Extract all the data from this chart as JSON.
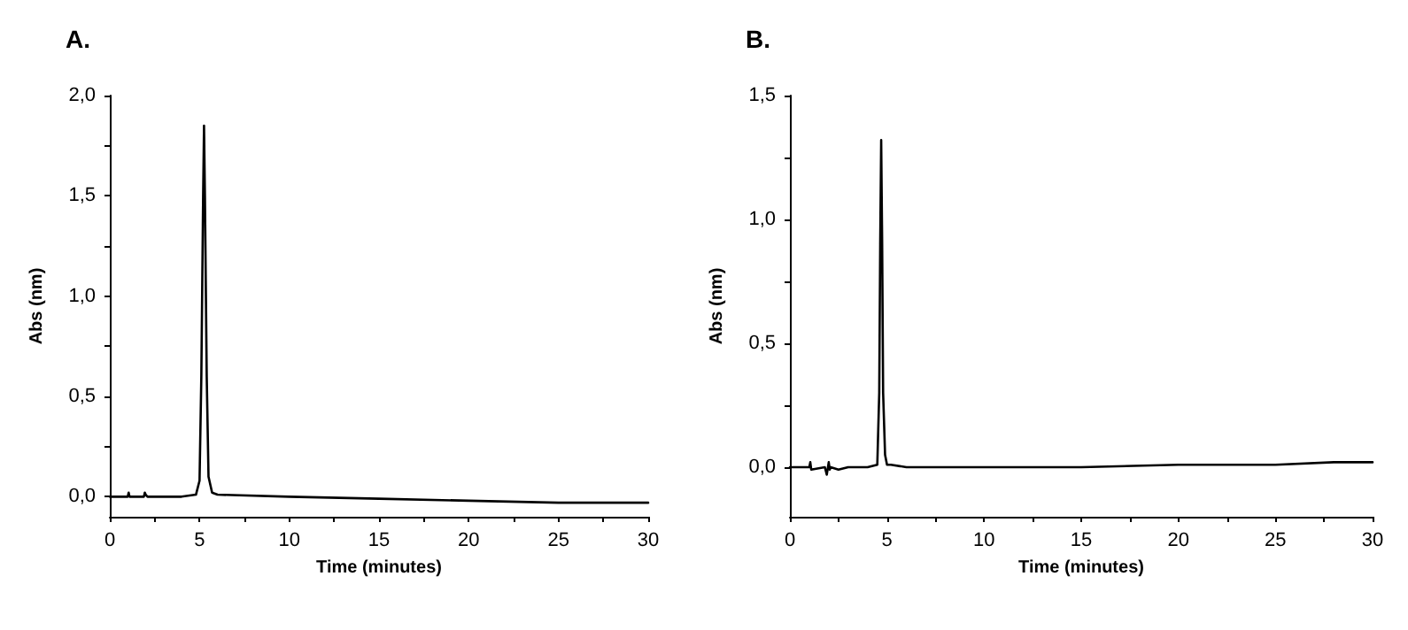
{
  "chart_data": [
    {
      "type": "line",
      "title": "A.",
      "xlabel": "Time (minutes)",
      "ylabel": "Abs (nm)",
      "xlim": [
        0,
        30
      ],
      "ylim": [
        -0.1,
        2.0
      ],
      "grid": false,
      "marker": "none",
      "line_style": "solid",
      "xticks": [
        0,
        {
          "value": 2.5,
          "label": null
        },
        5,
        {
          "value": 7.5,
          "label": null
        },
        10,
        {
          "value": 12.5,
          "label": null
        },
        15,
        {
          "value": 17.5,
          "label": null
        },
        20,
        {
          "value": 22.5,
          "label": null
        },
        25,
        {
          "value": 27.5,
          "label": null
        },
        30
      ],
      "yticks": [
        {
          "value": 0,
          "label": "0,0"
        },
        {
          "value": 0.25,
          "label": null
        },
        {
          "value": 0.5,
          "label": "0,5"
        },
        {
          "value": 0.75,
          "label": null
        },
        {
          "value": 1,
          "label": "1,0"
        },
        {
          "value": 1.25,
          "label": null
        },
        {
          "value": 1.5,
          "label": "1,5"
        },
        {
          "value": 1.75,
          "label": null
        },
        {
          "value": 2,
          "label": "2,0"
        }
      ],
      "series": [
        {
          "color": "#000000",
          "x": [
            0,
            1,
            1.05,
            1.1,
            1.9,
            1.95,
            2.0,
            2.1,
            2.5,
            3,
            4,
            4.8,
            5.0,
            5.1,
            5.2,
            5.25,
            5.3,
            5.4,
            5.5,
            5.7,
            6,
            10,
            15,
            20,
            25,
            30
          ],
          "values": [
            0,
            0,
            0.02,
            0,
            0,
            0.02,
            0.01,
            0,
            0,
            0,
            0,
            0.01,
            0.08,
            0.6,
            1.5,
            1.85,
            1.5,
            0.6,
            0.1,
            0.02,
            0.01,
            0,
            -0.01,
            -0.02,
            -0.03,
            -0.03
          ]
        }
      ]
    },
    {
      "type": "line",
      "title": "B.",
      "xlabel": "Time (minutes)",
      "ylabel": "Abs (nm)",
      "xlim": [
        0,
        30
      ],
      "ylim": [
        -0.2,
        1.5
      ],
      "grid": false,
      "marker": "none",
      "line_style": "solid",
      "xticks": [
        0,
        {
          "value": 2.5,
          "label": null
        },
        5,
        {
          "value": 7.5,
          "label": null
        },
        10,
        {
          "value": 12.5,
          "label": null
        },
        15,
        {
          "value": 17.5,
          "label": null
        },
        20,
        {
          "value": 22.5,
          "label": null
        },
        25,
        {
          "value": 27.5,
          "label": null
        },
        30
      ],
      "yticks": [
        {
          "value": 0,
          "label": "0,0"
        },
        {
          "value": 0.25,
          "label": null
        },
        {
          "value": 0.5,
          "label": "0,5"
        },
        {
          "value": 0.75,
          "label": null
        },
        {
          "value": 1,
          "label": "1,0"
        },
        {
          "value": 1.25,
          "label": null
        },
        {
          "value": 1.5,
          "label": "1,5"
        }
      ],
      "series": [
        {
          "color": "#000000",
          "x": [
            0,
            1,
            1.05,
            1.1,
            1.8,
            1.9,
            2.0,
            2.05,
            2.1,
            2.5,
            3,
            4,
            4.5,
            4.6,
            4.65,
            4.7,
            4.75,
            4.8,
            4.9,
            5.0,
            5.2,
            6,
            10,
            15,
            20,
            25,
            28,
            30
          ],
          "values": [
            0,
            0,
            0.02,
            -0.01,
            0,
            -0.03,
            0.02,
            -0.01,
            0,
            -0.01,
            0,
            0,
            0.01,
            0.3,
            0.9,
            1.32,
            0.9,
            0.3,
            0.05,
            0.01,
            0.01,
            0,
            0,
            0,
            0.01,
            0.01,
            0.02,
            0.02
          ]
        }
      ]
    }
  ]
}
